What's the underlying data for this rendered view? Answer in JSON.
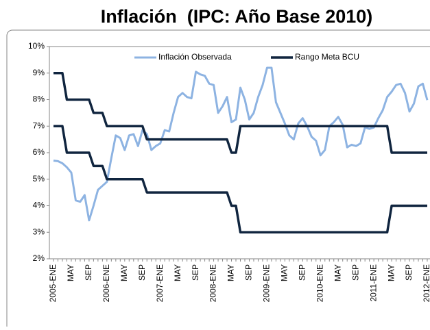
{
  "chart_data": {
    "type": "line",
    "title": "Inflación  (IPC: Año Base 2010)",
    "categories": [
      "2005-ENE",
      null,
      null,
      null,
      "MAY",
      null,
      null,
      null,
      "SEP",
      null,
      null,
      null,
      "2006-ENE",
      null,
      null,
      null,
      "MAY",
      null,
      null,
      null,
      "SEP",
      null,
      null,
      null,
      "2007-ENE",
      null,
      null,
      null,
      "MAY",
      null,
      null,
      null,
      "SEP",
      null,
      null,
      null,
      "2008-ENE",
      null,
      null,
      null,
      "MAY",
      null,
      null,
      null,
      "SEP",
      null,
      null,
      null,
      "2009-ENE",
      null,
      null,
      null,
      "MAY",
      null,
      null,
      null,
      "SEP",
      null,
      null,
      null,
      "2010-ENE",
      null,
      null,
      null,
      "MAY",
      null,
      null,
      null,
      "SEP",
      null,
      null,
      null,
      "2011-ENE",
      null,
      null,
      null,
      "MAY",
      null,
      null,
      null,
      "SEP",
      null,
      null,
      null,
      "2012-ENE"
    ],
    "series": [
      {
        "name": "Inflación Observada",
        "color": "#8db3e2",
        "values": [
          5.7,
          5.68,
          5.6,
          5.45,
          5.25,
          4.2,
          4.15,
          4.4,
          3.45,
          4.0,
          4.6,
          4.75,
          4.9,
          5.8,
          6.65,
          6.55,
          6.1,
          6.65,
          6.7,
          6.25,
          6.85,
          6.7,
          6.1,
          6.25,
          6.35,
          6.85,
          6.8,
          7.5,
          8.1,
          8.25,
          8.1,
          8.05,
          9.05,
          8.95,
          8.9,
          8.6,
          8.55,
          7.5,
          7.75,
          8.1,
          7.15,
          7.25,
          8.45,
          8.0,
          7.25,
          7.5,
          8.1,
          8.55,
          9.2,
          9.2,
          7.9,
          7.5,
          7.1,
          6.65,
          6.5,
          7.1,
          7.3,
          7.0,
          6.6,
          6.45,
          5.9,
          6.1,
          7.0,
          7.15,
          7.35,
          7.05,
          6.2,
          6.3,
          6.25,
          6.35,
          6.95,
          6.9,
          6.95,
          7.3,
          7.6,
          8.1,
          8.3,
          8.55,
          8.6,
          8.25,
          7.55,
          7.85,
          8.5,
          8.6,
          7.98
        ]
      },
      {
        "name": "Rango Meta BCU",
        "color": "#10253f",
        "values": [
          9,
          9,
          9,
          8,
          8,
          8,
          8,
          8,
          8,
          7.5,
          7.5,
          7.5,
          7,
          7,
          7,
          7,
          7,
          7,
          7,
          7,
          7,
          6.5,
          6.5,
          6.5,
          6.5,
          6.5,
          6.5,
          6.5,
          6.5,
          6.5,
          6.5,
          6.5,
          6.5,
          6.5,
          6.5,
          6.5,
          6.5,
          6.5,
          6.5,
          6.5,
          6,
          6,
          7,
          7,
          7,
          7,
          7,
          7,
          7,
          7,
          7,
          7,
          7,
          7,
          7,
          7,
          7,
          7,
          7,
          7,
          7,
          7,
          7,
          7,
          7,
          7,
          7,
          7,
          7,
          7,
          7,
          7,
          7,
          7,
          7,
          7,
          6,
          6,
          6,
          6,
          6,
          6,
          6,
          6,
          6
        ]
      },
      {
        "color": "#10253f",
        "values": [
          7,
          7,
          7,
          6,
          6,
          6,
          6,
          6,
          6,
          5.5,
          5.5,
          5.5,
          5,
          5,
          5,
          5,
          5,
          5,
          5,
          5,
          5,
          4.5,
          4.5,
          4.5,
          4.5,
          4.5,
          4.5,
          4.5,
          4.5,
          4.5,
          4.5,
          4.5,
          4.5,
          4.5,
          4.5,
          4.5,
          4.5,
          4.5,
          4.5,
          4.5,
          4,
          4,
          3,
          3,
          3,
          3,
          3,
          3,
          3,
          3,
          3,
          3,
          3,
          3,
          3,
          3,
          3,
          3,
          3,
          3,
          3,
          3,
          3,
          3,
          3,
          3,
          3,
          3,
          3,
          3,
          3,
          3,
          3,
          3,
          3,
          3,
          4,
          4,
          4,
          4,
          4,
          4,
          4,
          4,
          4
        ]
      }
    ],
    "ylim": [
      2,
      10
    ],
    "yticks": [
      {
        "value": 2,
        "label": "2%"
      },
      {
        "value": 3,
        "label": "3%"
      },
      {
        "value": 4,
        "label": "4%"
      },
      {
        "value": 5,
        "label": "5%"
      },
      {
        "value": 6,
        "label": "6%"
      },
      {
        "value": 7,
        "label": "7%"
      },
      {
        "value": 8,
        "label": "8%"
      },
      {
        "value": 9,
        "label": "9%"
      },
      {
        "value": 10,
        "label": "10%"
      }
    ]
  }
}
